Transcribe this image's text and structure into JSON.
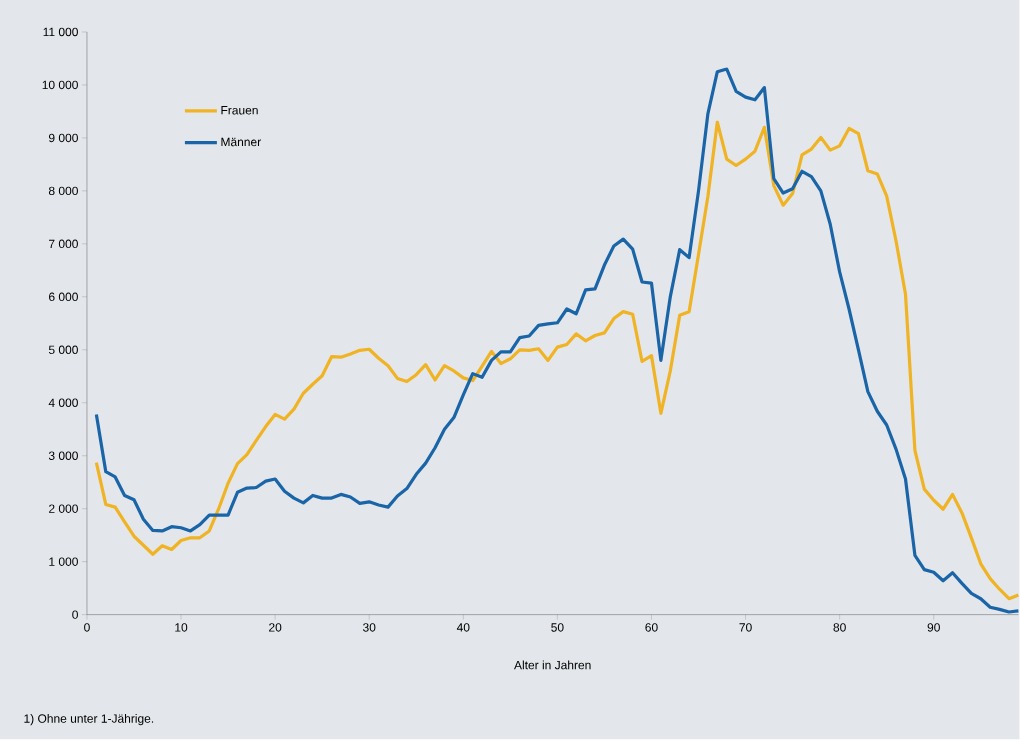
{
  "chart_data": {
    "type": "line",
    "xlabel": "Alter in Jahren",
    "annotations": [
      "1) Ohne unter 1-Jährige."
    ],
    "x": [
      1,
      2,
      3,
      4,
      5,
      6,
      7,
      8,
      9,
      10,
      11,
      12,
      13,
      14,
      15,
      16,
      17,
      18,
      19,
      20,
      21,
      22,
      23,
      24,
      25,
      26,
      27,
      28,
      29,
      30,
      31,
      32,
      33,
      34,
      35,
      36,
      37,
      38,
      39,
      40,
      41,
      42,
      43,
      44,
      45,
      46,
      47,
      48,
      49,
      50,
      51,
      52,
      53,
      54,
      55,
      56,
      57,
      58,
      59,
      60,
      61,
      62,
      63,
      64,
      65,
      66,
      67,
      68,
      69,
      70,
      71,
      72,
      73,
      74,
      75,
      76,
      77,
      78,
      79,
      80,
      81,
      82,
      83,
      84,
      85,
      86,
      87,
      88,
      89,
      90,
      91,
      92,
      93,
      94,
      95,
      96,
      97,
      98,
      99
    ],
    "series": [
      {
        "name": "Frauen",
        "color": "#f0b323",
        "values": [
          2870,
          2080,
          2030,
          1750,
          1480,
          1310,
          1140,
          1300,
          1230,
          1400,
          1450,
          1450,
          1580,
          2000,
          2480,
          2850,
          3020,
          3290,
          3550,
          3780,
          3690,
          3880,
          4180,
          4350,
          4510,
          4870,
          4860,
          4920,
          4990,
          5010,
          4840,
          4700,
          4460,
          4400,
          4530,
          4720,
          4430,
          4700,
          4600,
          4470,
          4420,
          4690,
          4970,
          4740,
          4830,
          5000,
          4990,
          5020,
          4800,
          5050,
          5100,
          5300,
          5170,
          5270,
          5320,
          5590,
          5720,
          5670,
          4780,
          4890,
          3800,
          4600,
          5650,
          5720,
          6800,
          7900,
          9300,
          8600,
          8480,
          8600,
          8750,
          9200,
          8100,
          7730,
          7950,
          8680,
          8790,
          9010,
          8770,
          8850,
          9180,
          9080,
          8380,
          8320,
          7900,
          7050,
          6050,
          3100,
          2370,
          2160,
          1990,
          2270,
          1920,
          1450,
          960,
          680,
          480,
          300,
          370
        ]
      },
      {
        "name": "Männer",
        "color": "#1a64a8",
        "values": [
          3780,
          2700,
          2600,
          2250,
          2170,
          1800,
          1590,
          1580,
          1660,
          1640,
          1580,
          1700,
          1880,
          1880,
          1880,
          2310,
          2390,
          2400,
          2520,
          2560,
          2330,
          2200,
          2110,
          2250,
          2200,
          2200,
          2270,
          2220,
          2100,
          2130,
          2070,
          2030,
          2240,
          2380,
          2650,
          2860,
          3150,
          3500,
          3720,
          4150,
          4550,
          4480,
          4800,
          4960,
          4960,
          5230,
          5260,
          5460,
          5490,
          5510,
          5770,
          5680,
          6130,
          6150,
          6600,
          6960,
          7090,
          6900,
          6280,
          6260,
          4800,
          6000,
          6890,
          6740,
          8000,
          9460,
          10250,
          10300,
          9880,
          9770,
          9720,
          9950,
          8230,
          7960,
          8040,
          8370,
          8270,
          8000,
          7370,
          6470,
          5770,
          5000,
          4210,
          3840,
          3580,
          3120,
          2560,
          1120,
          850,
          800,
          640,
          790,
          590,
          400,
          300,
          140,
          100,
          50,
          70
        ]
      }
    ],
    "xlim": [
      0,
      99
    ],
    "ylim": [
      0,
      11000
    ],
    "xticks": [
      0,
      10,
      20,
      30,
      40,
      50,
      60,
      70,
      80,
      90
    ],
    "yticks": [
      0,
      {
        "value": 1000,
        "label": "1 000"
      },
      {
        "value": 2000,
        "label": "2 000"
      },
      {
        "value": 3000,
        "label": "3 000"
      },
      {
        "value": 4000,
        "label": "4 000"
      },
      {
        "value": 5000,
        "label": "5 000"
      },
      {
        "value": 6000,
        "label": "6 000"
      },
      {
        "value": 7000,
        "label": "7 000"
      },
      {
        "value": 8000,
        "label": "8 000"
      },
      {
        "value": 9000,
        "label": "9 000"
      },
      {
        "value": 10000,
        "label": "10 000"
      },
      {
        "value": 11000,
        "label": "11 000"
      }
    ],
    "grid": false,
    "legend": "top left",
    "marker": "none",
    "line_style": "solid"
  }
}
